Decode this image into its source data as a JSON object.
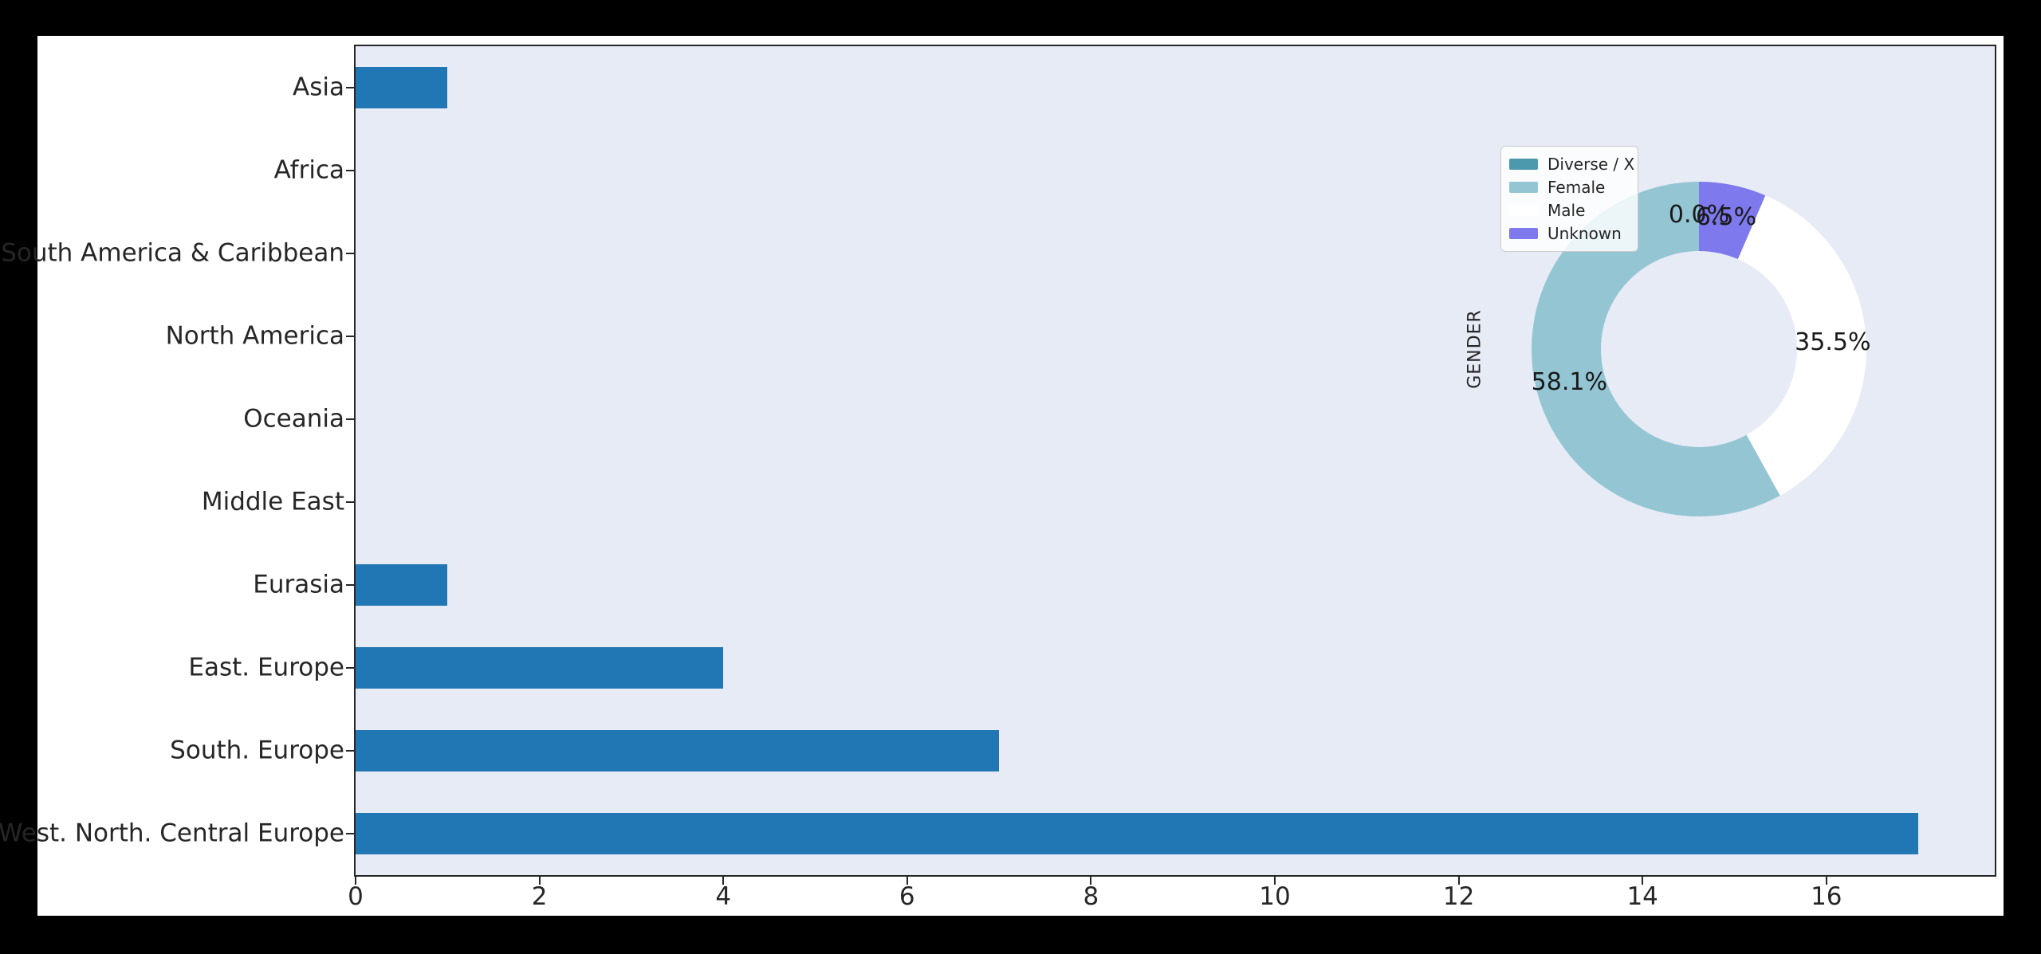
{
  "page": {
    "background": "#000000",
    "figure_background": "#ffffff",
    "spine_color": "#262626",
    "text_color": "#262626"
  },
  "chart_data": [
    {
      "type": "bar",
      "orientation": "horizontal",
      "title": "",
      "xlabel": "",
      "ylabel": "",
      "categories": [
        "Asia",
        "Africa",
        "South America & Caribbean",
        "North America",
        "Oceania",
        "Middle East",
        "Eurasia",
        "East. Europe",
        "South. Europe",
        "West. North. Central Europe"
      ],
      "values": [
        1,
        0,
        0,
        0,
        0,
        0,
        1,
        4,
        7,
        17
      ],
      "xticks": [
        0,
        2,
        4,
        6,
        8,
        10,
        12,
        14,
        16
      ],
      "xlim": [
        0,
        17.83
      ],
      "bar_color": "#2176b4",
      "plot_background": "#e7ebf6",
      "grid": false,
      "legend_position": "none"
    },
    {
      "type": "pie",
      "subtype": "donut",
      "title": "GENDER",
      "start_angle_deg": 90,
      "direction": "counterclockwise",
      "hole_ratio": 0.586,
      "legend_position": "upper left",
      "segments": [
        {
          "label": "Diverse / X",
          "pct": 0.0,
          "pct_label": "0.0%",
          "color": "#4c99ad"
        },
        {
          "label": "Female",
          "pct": 58.1,
          "pct_label": "58.1%",
          "color": "#94c5d3"
        },
        {
          "label": "Male",
          "pct": 35.5,
          "pct_label": "35.5%",
          "color": "#ffffff"
        },
        {
          "label": "Unknown",
          "pct": 6.5,
          "pct_label": "6.5%",
          "color": "#7e79ed"
        }
      ]
    }
  ]
}
